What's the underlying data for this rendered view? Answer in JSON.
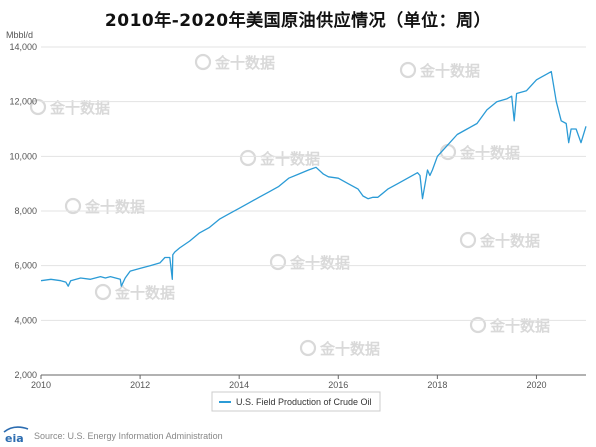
{
  "header": {
    "title": "2010年-2020年美国原油供应情况（单位：周）"
  },
  "source_text": "Source: U.S. Energy Information Administration",
  "logo_text": "eia",
  "watermark_text": "金十数据",
  "colors": {
    "line": "#2b9bd6",
    "grid": "#e3e3e3",
    "axis": "#666666",
    "watermark": "#d9d9d9"
  },
  "chart_data": {
    "type": "line",
    "title": "2010年-2020年美国原油供应情况（单位：周）",
    "ylabel": "Mbbl/d",
    "xlabel": "",
    "xlim": [
      2010,
      2021.0
    ],
    "ylim": [
      2000,
      14000
    ],
    "x_ticks": [
      "2010",
      "2012",
      "2014",
      "2016",
      "2018",
      "2020"
    ],
    "y_ticks": [
      "2,000",
      "4,000",
      "6,000",
      "8,000",
      "10,000",
      "12,000",
      "14,000"
    ],
    "grid": "horizontal",
    "legend_position": "bottom",
    "series": [
      {
        "name": "U.S. Field Production of Crude Oil",
        "x": [
          2010.0,
          2010.2,
          2010.4,
          2010.5,
          2010.55,
          2010.6,
          2010.8,
          2011.0,
          2011.2,
          2011.3,
          2011.4,
          2011.6,
          2011.62,
          2011.7,
          2011.8,
          2012.0,
          2012.2,
          2012.4,
          2012.5,
          2012.6,
          2012.65,
          2012.66,
          2012.7,
          2012.8,
          2013.0,
          2013.2,
          2013.4,
          2013.6,
          2013.8,
          2014.0,
          2014.2,
          2014.4,
          2014.6,
          2014.8,
          2015.0,
          2015.2,
          2015.4,
          2015.55,
          2015.7,
          2015.8,
          2016.0,
          2016.2,
          2016.4,
          2016.5,
          2016.6,
          2016.7,
          2016.8,
          2017.0,
          2017.2,
          2017.4,
          2017.6,
          2017.65,
          2017.7,
          2017.8,
          2017.85,
          2017.9,
          2018.0,
          2018.2,
          2018.4,
          2018.6,
          2018.8,
          2019.0,
          2019.2,
          2019.4,
          2019.5,
          2019.55,
          2019.6,
          2019.8,
          2020.0,
          2020.1,
          2020.2,
          2020.3,
          2020.4,
          2020.5,
          2020.6,
          2020.65,
          2020.7,
          2020.8,
          2020.9,
          2021.0
        ],
        "values": [
          5450,
          5500,
          5450,
          5400,
          5250,
          5450,
          5550,
          5500,
          5600,
          5550,
          5600,
          5500,
          5250,
          5550,
          5800,
          5900,
          6000,
          6100,
          6300,
          6300,
          5500,
          6400,
          6500,
          6650,
          6900,
          7200,
          7400,
          7700,
          7900,
          8100,
          8300,
          8500,
          8700,
          8900,
          9200,
          9350,
          9500,
          9600,
          9350,
          9250,
          9200,
          9000,
          8800,
          8550,
          8450,
          8500,
          8500,
          8800,
          9000,
          9200,
          9400,
          9300,
          8450,
          9500,
          9300,
          9500,
          10000,
          10400,
          10800,
          11000,
          11200,
          11700,
          12000,
          12100,
          12200,
          11300,
          12300,
          12400,
          12800,
          12900,
          13000,
          13100,
          12000,
          11300,
          11200,
          10500,
          11000,
          11000,
          10500,
          11100
        ]
      }
    ]
  }
}
